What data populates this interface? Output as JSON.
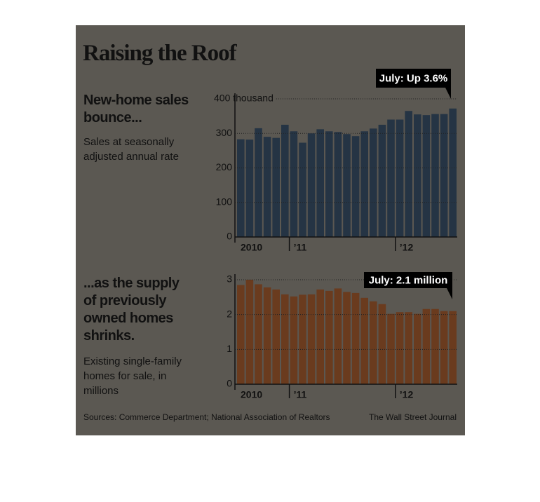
{
  "title": "Raising the Roof",
  "source": "Sources: Commerce Department; National Association of Realtors",
  "credit": "The Wall Street Journal",
  "chart_data": [
    {
      "type": "bar",
      "heading": "New-home sales bounce...",
      "subtitle": "Sales at seasonally adjusted annual rate",
      "annotation": "July: Up 3.6%",
      "categories": [
        "2010",
        null,
        null,
        null,
        null,
        null,
        "’11",
        null,
        null,
        null,
        null,
        null,
        null,
        null,
        null,
        null,
        null,
        null,
        "’12",
        null,
        null,
        null,
        null,
        null,
        null
      ],
      "values": [
        283,
        282,
        315,
        290,
        287,
        325,
        306,
        273,
        300,
        312,
        306,
        304,
        298,
        292,
        306,
        314,
        325,
        340,
        340,
        365,
        355,
        353,
        356,
        356,
        372
      ],
      "color": "#253444",
      "ylim": [
        0,
        400
      ],
      "yticks": [
        0,
        100,
        200,
        300,
        {
          "value": 400,
          "label": "400 thousand"
        }
      ],
      "grid": true
    },
    {
      "type": "bar",
      "heading": "...as the supply of previously owned homes shrinks.",
      "subtitle": "Existing single-family homes for sale, in millions",
      "annotation": "July: 2.1 million",
      "categories": [
        "2010",
        null,
        null,
        null,
        null,
        null,
        "’11",
        null,
        null,
        null,
        null,
        null,
        null,
        null,
        null,
        null,
        null,
        null,
        "’12",
        null,
        null,
        null,
        null,
        null,
        null
      ],
      "values": [
        2.85,
        3.0,
        2.87,
        2.78,
        2.72,
        2.58,
        2.52,
        2.57,
        2.58,
        2.72,
        2.68,
        2.75,
        2.65,
        2.62,
        2.48,
        2.38,
        2.3,
        2.02,
        2.07,
        2.07,
        2.02,
        2.16,
        2.16,
        2.1,
        2.1
      ],
      "color": "#6a3b1e",
      "ylim": [
        0,
        3
      ],
      "yticks": [
        0,
        1,
        2,
        3
      ],
      "grid": true
    }
  ]
}
